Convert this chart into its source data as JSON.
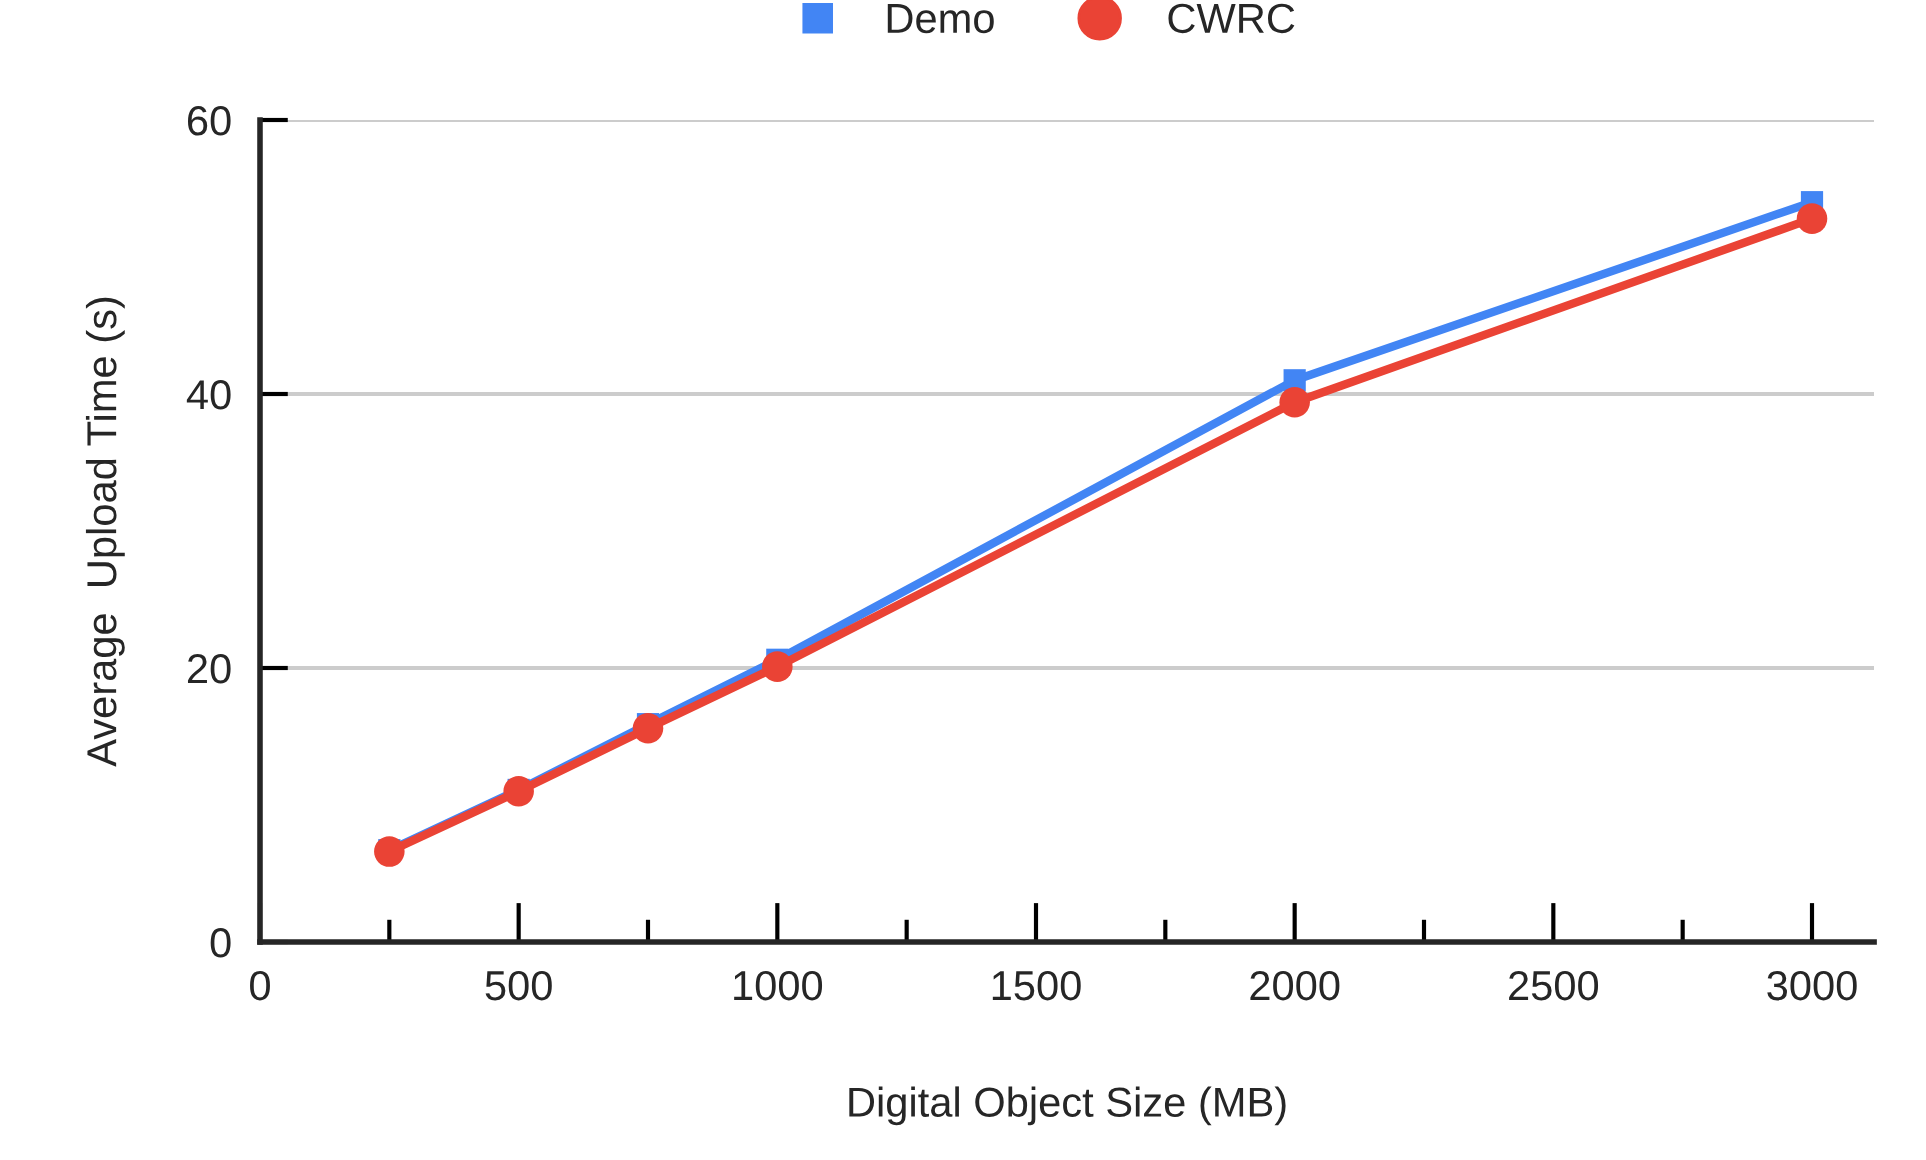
{
  "chart_data": {
    "type": "line",
    "xlabel": "Digital Object Size (MB)",
    "ylabel": "Average  Upload Time (s)",
    "x": [
      250,
      500,
      750,
      1000,
      2000,
      3000
    ],
    "series": [
      {
        "name": "Demo",
        "color": "#4285f4",
        "marker": "square",
        "values": [
          6.7,
          11.1,
          15.9,
          20.6,
          41.0,
          54.0
        ]
      },
      {
        "name": "CWRC",
        "color": "#ea4335",
        "marker": "circle",
        "values": [
          6.6,
          11.0,
          15.6,
          20.1,
          39.4,
          52.8
        ]
      }
    ],
    "xlim": [
      0,
      3120
    ],
    "ylim": [
      0,
      60
    ],
    "xticks": [
      0,
      {
        "value": 250,
        "label": null
      },
      500,
      {
        "value": 750,
        "label": null
      },
      1000,
      {
        "value": 1250,
        "label": null
      },
      1500,
      {
        "value": 1750,
        "label": null
      },
      2000,
      {
        "value": 2250,
        "label": null
      },
      2500,
      {
        "value": 2750,
        "label": null
      },
      3000
    ],
    "yticks": [
      0,
      20,
      40,
      60
    ],
    "grid": "y",
    "legend": "top",
    "line_style": "solid"
  }
}
